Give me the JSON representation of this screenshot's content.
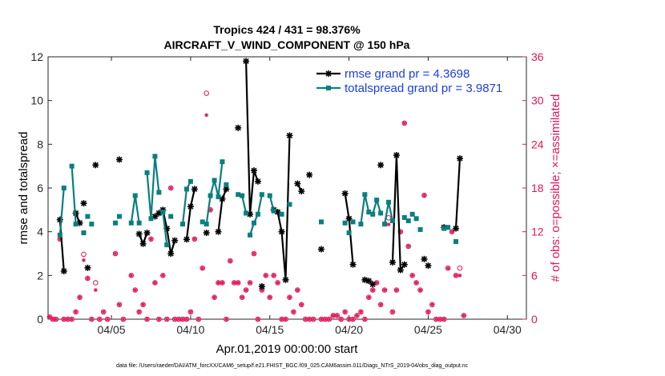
{
  "chart_data": {
    "type": "line",
    "title": "Tropics 424 / 431 = 98.376%",
    "subtitle": "AIRCRAFT_V_WIND_COMPONENT @ 150 hPa",
    "xlabel": "Apr.01,2019 00:00:00 start",
    "ylabel": "rmse and totalspread",
    "y2label": "# of obs: o=possible; ×=assimilated",
    "footnote": "data file: /Users/raeder/DAI/ATM_forcXX/CAM6_setup/f.e21.FHIST_BGC.f09_025.CAM6assim.011/Diags_NTrS_2019-04/obs_diag_output.nc",
    "xlim": [
      1,
      31.2
    ],
    "ylim": [
      0,
      12
    ],
    "y2lim": [
      0,
      36
    ],
    "xticks": [
      5,
      10,
      15,
      20,
      25,
      30
    ],
    "xtick_labels": [
      "04/05",
      "04/10",
      "04/15",
      "04/20",
      "04/25",
      "04/30"
    ],
    "yticks": [
      0,
      2,
      4,
      6,
      8,
      10,
      12
    ],
    "y2ticks": [
      0,
      6,
      12,
      18,
      24,
      30,
      36
    ],
    "colors": {
      "rmse": "#000000",
      "spread": "#0a7f7f",
      "obs": "#e0165a",
      "legend_text": "#1a3fe0"
    },
    "series": [
      {
        "name": "rmse grand pr = 4.3698",
        "color": "#000000",
        "segments": [
          [
            [
              1.75,
              4.55
            ],
            [
              2.0,
              2.2
            ]
          ],
          [
            [
              2.75,
              4.85
            ],
            [
              3.0,
              4.4
            ]
          ],
          [
            [
              3.25,
              5.3
            ]
          ],
          [
            [
              3.5,
              2.35
            ]
          ],
          [
            [
              4.0,
              7.05
            ]
          ],
          [
            [
              5.5,
              7.3
            ]
          ],
          [
            [
              6.75,
              3.9
            ],
            [
              7.0,
              3.45
            ],
            [
              7.25,
              3.95
            ]
          ],
          [
            [
              7.75,
              4.7
            ],
            [
              8.0,
              4.85
            ],
            [
              8.25,
              5.0
            ],
            [
              8.5,
              4.15
            ],
            [
              8.75,
              3.0
            ],
            [
              9.0,
              3.6
            ]
          ],
          [
            [
              9.75,
              3.65
            ],
            [
              10.0,
              5.15
            ],
            [
              10.25,
              5.95
            ]
          ],
          [
            [
              11.0,
              3.95
            ]
          ],
          [
            [
              11.75,
              4.0
            ],
            [
              12.0,
              5.5
            ],
            [
              12.25,
              5.95
            ]
          ],
          [
            [
              13.0,
              8.75
            ]
          ],
          [
            [
              13.5,
              11.8
            ],
            [
              13.75,
              4.8
            ],
            [
              14.0,
              6.8
            ],
            [
              14.25,
              6.3
            ]
          ],
          [
            [
              14.5,
              1.5
            ]
          ],
          [
            [
              15.25,
              5.0
            ],
            [
              15.5,
              4.9
            ],
            [
              15.75,
              4.0
            ],
            [
              16.0,
              1.8
            ],
            [
              16.25,
              8.4
            ]
          ],
          [
            [
              16.75,
              6.2
            ],
            [
              17.0,
              5.85
            ]
          ],
          [
            [
              17.5,
              6.6
            ]
          ],
          [
            [
              18.25,
              3.2
            ]
          ],
          [
            [
              19.75,
              5.75
            ],
            [
              20.0,
              4.6
            ],
            [
              20.25,
              2.5
            ]
          ],
          [
            [
              21.0,
              1.8
            ],
            [
              21.25,
              1.75
            ]
          ],
          [
            [
              21.5,
              1.6
            ]
          ],
          [
            [
              22.0,
              7.05
            ]
          ],
          [
            [
              22.75,
              2.6
            ],
            [
              23.0,
              7.5
            ],
            [
              23.25,
              2.25
            ],
            [
              23.5,
              2.5
            ]
          ],
          [
            [
              24.75,
              2.75
            ]
          ],
          [
            [
              25.0,
              2.45
            ]
          ],
          [
            [
              26.0,
              4.2
            ]
          ],
          [
            [
              26.75,
              4.15
            ],
            [
              27.0,
              7.35
            ]
          ]
        ]
      },
      {
        "name": "totalspread grand pr = 3.9871",
        "color": "#0a7f7f",
        "segments": [
          [
            [
              1.75,
              3.85
            ],
            [
              2.0,
              6.0
            ]
          ],
          [
            [
              2.5,
              7.0
            ],
            [
              2.75,
              4.35
            ]
          ],
          [
            [
              3.25,
              3.95
            ]
          ],
          [
            [
              3.5,
              4.7
            ]
          ],
          [
            [
              3.75,
              4.35
            ]
          ],
          [
            [
              5.25,
              4.4
            ]
          ],
          [
            [
              5.5,
              4.7
            ]
          ],
          [
            [
              6.25,
              4.4
            ],
            [
              6.5,
              5.65
            ],
            [
              6.75,
              4.4
            ]
          ],
          [
            [
              7.25,
              6.7
            ],
            [
              7.5,
              4.6
            ],
            [
              7.75,
              7.45
            ],
            [
              8.0,
              5.8
            ]
          ],
          [
            [
              8.25,
              4.9
            ],
            [
              8.5,
              3.4
            ]
          ],
          [
            [
              8.75,
              4.7
            ]
          ],
          [
            [
              9.5,
              4.35
            ],
            [
              9.75,
              5.95
            ],
            [
              10.0,
              6.3
            ]
          ],
          [
            [
              10.75,
              4.45
            ],
            [
              11.0,
              4.35
            ],
            [
              11.25,
              5.65
            ],
            [
              11.5,
              6.35
            ],
            [
              11.75,
              5.6
            ],
            [
              12.0,
              7.2
            ]
          ],
          [
            [
              12.25,
              6.15
            ]
          ],
          [
            [
              13.0,
              5.7
            ]
          ],
          [
            [
              13.25,
              5.65
            ],
            [
              13.5,
              4.85
            ]
          ],
          [
            [
              13.75,
              3.85
            ],
            [
              14.0,
              4.4
            ],
            [
              14.25,
              4.8
            ],
            [
              14.5,
              5.7
            ]
          ],
          [
            [
              15.0,
              5.65
            ],
            [
              15.25,
              4.95
            ]
          ],
          [
            [
              15.75,
              4.8
            ]
          ],
          [
            [
              16.25,
              5.25
            ]
          ],
          [
            [
              18.25,
              4.45
            ]
          ],
          [
            [
              19.75,
              4.4
            ]
          ],
          [
            [
              20.0,
              3.95
            ]
          ],
          [
            [
              20.25,
              4.45
            ]
          ],
          [
            [
              20.75,
              4.35
            ],
            [
              21.0,
              5.7
            ],
            [
              21.25,
              4.9
            ],
            [
              21.5,
              4.8
            ],
            [
              21.75,
              5.45
            ],
            [
              22.0,
              4.85
            ]
          ],
          [
            [
              22.25,
              4.35
            ],
            [
              22.5,
              5.35
            ],
            [
              22.75,
              4.5
            ]
          ],
          [
            [
              23.5,
              4.65
            ],
            [
              23.75,
              4.5
            ]
          ],
          [
            [
              24.0,
              4.8
            ]
          ],
          [
            [
              24.25,
              4.6
            ]
          ],
          [
            [
              24.5,
              4.1
            ]
          ],
          [
            [
              26.0,
              4.15
            ],
            [
              26.25,
              4.2
            ]
          ],
          [
            [
              26.75,
              3.55
            ]
          ]
        ]
      }
    ],
    "obs_possible": [
      [
        1.1,
        0.3
      ],
      [
        1.3,
        0.0
      ],
      [
        1.5,
        0.0
      ],
      [
        1.75,
        11.0
      ],
      [
        2.0,
        0.0
      ],
      [
        2.25,
        0.0
      ],
      [
        2.5,
        0.0
      ],
      [
        2.75,
        1.0
      ],
      [
        3.0,
        3.0
      ],
      [
        3.25,
        8.9
      ],
      [
        3.5,
        5.6
      ],
      [
        3.75,
        0.0
      ],
      [
        4.0,
        5.0
      ],
      [
        4.25,
        0.0
      ],
      [
        4.5,
        1.0
      ],
      [
        4.75,
        0.0
      ],
      [
        5.25,
        9.0
      ],
      [
        5.5,
        2.0
      ],
      [
        5.75,
        0.0
      ],
      [
        6.25,
        6.0
      ],
      [
        6.5,
        4.0
      ],
      [
        6.75,
        1.0
      ],
      [
        7.0,
        2.0
      ],
      [
        7.25,
        0.0
      ],
      [
        7.5,
        11.0
      ],
      [
        7.75,
        5.0
      ],
      [
        8.0,
        0.0
      ],
      [
        8.25,
        6.0
      ],
      [
        8.5,
        0.0
      ],
      [
        8.75,
        18.0
      ],
      [
        9.0,
        0.0
      ],
      [
        9.25,
        0.0
      ],
      [
        9.5,
        0.0
      ],
      [
        9.75,
        0.0
      ],
      [
        10.0,
        1.0
      ],
      [
        10.25,
        11.0
      ],
      [
        10.5,
        0.0
      ],
      [
        10.75,
        7.0
      ],
      [
        11.0,
        31.0
      ],
      [
        11.25,
        15.0
      ],
      [
        11.5,
        3.0
      ],
      [
        11.75,
        5.0
      ],
      [
        12.0,
        5.0
      ],
      [
        12.25,
        0.0
      ],
      [
        12.5,
        8.0
      ],
      [
        12.75,
        5.0
      ],
      [
        13.0,
        5.0
      ],
      [
        13.25,
        3.0
      ],
      [
        13.5,
        4.0
      ],
      [
        13.75,
        5.0
      ],
      [
        14.0,
        9.0
      ],
      [
        14.25,
        0.0
      ],
      [
        14.5,
        4.0
      ],
      [
        14.75,
        6.0
      ],
      [
        15.0,
        3.0
      ],
      [
        15.25,
        6.0
      ],
      [
        15.5,
        5.0
      ],
      [
        15.75,
        0.0
      ],
      [
        16.0,
        0.0
      ],
      [
        16.25,
        3.0
      ],
      [
        16.5,
        1.0
      ],
      [
        16.75,
        4.0
      ],
      [
        17.0,
        2.0
      ],
      [
        17.25,
        0.0
      ],
      [
        17.5,
        0.0
      ],
      [
        17.75,
        0.0
      ],
      [
        18.25,
        0.0
      ],
      [
        18.5,
        0.0
      ],
      [
        18.75,
        0.0
      ],
      [
        19.0,
        0.5
      ],
      [
        19.25,
        0.5
      ],
      [
        19.5,
        0.0
      ],
      [
        19.75,
        1.0
      ],
      [
        20.0,
        0.0
      ],
      [
        20.25,
        0.0
      ],
      [
        20.5,
        0.5
      ],
      [
        20.75,
        1.0
      ],
      [
        21.0,
        0.0
      ],
      [
        21.25,
        3.0
      ],
      [
        21.5,
        4.0
      ],
      [
        21.75,
        5.0
      ],
      [
        22.0,
        2.0
      ],
      [
        22.25,
        4.0
      ],
      [
        22.5,
        13.9
      ],
      [
        22.75,
        1.0
      ],
      [
        23.0,
        4.0
      ],
      [
        23.25,
        12.0
      ],
      [
        23.5,
        26.9
      ],
      [
        23.75,
        10.0
      ],
      [
        24.0,
        6.0
      ],
      [
        24.25,
        5.0
      ],
      [
        24.5,
        4.0
      ],
      [
        24.75,
        17.0
      ],
      [
        25.0,
        1.0
      ],
      [
        25.25,
        2.0
      ],
      [
        25.5,
        0.0
      ],
      [
        25.75,
        0.0
      ],
      [
        26.0,
        0.0
      ],
      [
        26.25,
        7.0
      ],
      [
        26.5,
        12.0
      ],
      [
        26.75,
        6.0
      ],
      [
        27.0,
        7.0
      ],
      [
        27.25,
        0.5
      ]
    ],
    "obs_assimilated": [
      [
        1.1,
        0.3
      ],
      [
        1.3,
        0.0
      ],
      [
        1.5,
        0.0
      ],
      [
        1.75,
        11.0
      ],
      [
        2.0,
        0.0
      ],
      [
        2.25,
        0.0
      ],
      [
        2.5,
        0.0
      ],
      [
        2.75,
        1.0
      ],
      [
        3.0,
        3.0
      ],
      [
        3.25,
        8.1
      ],
      [
        3.5,
        5.6
      ],
      [
        3.75,
        0.0
      ],
      [
        4.0,
        4.0
      ],
      [
        4.25,
        0.0
      ],
      [
        4.5,
        1.0
      ],
      [
        4.75,
        0.0
      ],
      [
        5.25,
        9.0
      ],
      [
        5.5,
        2.0
      ],
      [
        5.75,
        0.0
      ],
      [
        6.25,
        6.0
      ],
      [
        6.5,
        4.0
      ],
      [
        6.75,
        1.0
      ],
      [
        7.0,
        2.0
      ],
      [
        7.25,
        0.0
      ],
      [
        7.5,
        11.0
      ],
      [
        7.75,
        5.0
      ],
      [
        8.0,
        0.0
      ],
      [
        8.25,
        6.0
      ],
      [
        8.5,
        0.0
      ],
      [
        8.75,
        18.0
      ],
      [
        9.0,
        0.0
      ],
      [
        9.25,
        0.0
      ],
      [
        9.5,
        0.0
      ],
      [
        9.75,
        0.0
      ],
      [
        10.0,
        1.0
      ],
      [
        10.25,
        11.0
      ],
      [
        10.5,
        0.0
      ],
      [
        10.75,
        7.0
      ],
      [
        11.0,
        28.0
      ],
      [
        11.25,
        15.0
      ],
      [
        11.5,
        3.0
      ],
      [
        11.75,
        5.0
      ],
      [
        12.0,
        5.0
      ],
      [
        12.25,
        0.0
      ],
      [
        12.5,
        8.0
      ],
      [
        12.75,
        5.0
      ],
      [
        13.0,
        5.0
      ],
      [
        13.25,
        3.0
      ],
      [
        13.5,
        4.0
      ],
      [
        13.75,
        5.0
      ],
      [
        14.0,
        9.0
      ],
      [
        14.25,
        0.0
      ],
      [
        14.5,
        4.0
      ],
      [
        14.75,
        6.0
      ],
      [
        15.0,
        3.0
      ],
      [
        15.25,
        6.0
      ],
      [
        15.5,
        5.0
      ],
      [
        15.75,
        0.0
      ],
      [
        16.0,
        0.0
      ],
      [
        16.25,
        3.0
      ],
      [
        16.5,
        1.0
      ],
      [
        16.75,
        4.0
      ],
      [
        17.0,
        2.0
      ],
      [
        17.25,
        0.0
      ],
      [
        17.5,
        0.0
      ],
      [
        17.75,
        0.0
      ],
      [
        18.25,
        0.0
      ],
      [
        18.5,
        0.0
      ],
      [
        18.75,
        0.0
      ],
      [
        19.0,
        0.5
      ],
      [
        19.25,
        0.5
      ],
      [
        19.5,
        0.0
      ],
      [
        19.75,
        1.0
      ],
      [
        20.0,
        0.0
      ],
      [
        20.25,
        0.0
      ],
      [
        20.5,
        0.5
      ],
      [
        20.75,
        1.0
      ],
      [
        21.0,
        0.0
      ],
      [
        21.25,
        3.0
      ],
      [
        21.5,
        4.0
      ],
      [
        21.75,
        5.0
      ],
      [
        22.0,
        2.0
      ],
      [
        22.25,
        4.0
      ],
      [
        22.5,
        13.0
      ],
      [
        22.75,
        1.0
      ],
      [
        23.0,
        4.0
      ],
      [
        23.25,
        12.0
      ],
      [
        23.5,
        26.9
      ],
      [
        23.75,
        10.0
      ],
      [
        24.0,
        6.0
      ],
      [
        24.25,
        5.0
      ],
      [
        24.5,
        4.0
      ],
      [
        24.75,
        17.0
      ],
      [
        25.0,
        1.0
      ],
      [
        25.25,
        2.0
      ],
      [
        25.5,
        0.0
      ],
      [
        25.75,
        0.0
      ],
      [
        26.0,
        0.0
      ],
      [
        26.25,
        7.0
      ],
      [
        26.5,
        12.0
      ],
      [
        26.75,
        6.0
      ],
      [
        27.0,
        6.0
      ],
      [
        27.25,
        0.5
      ]
    ]
  }
}
